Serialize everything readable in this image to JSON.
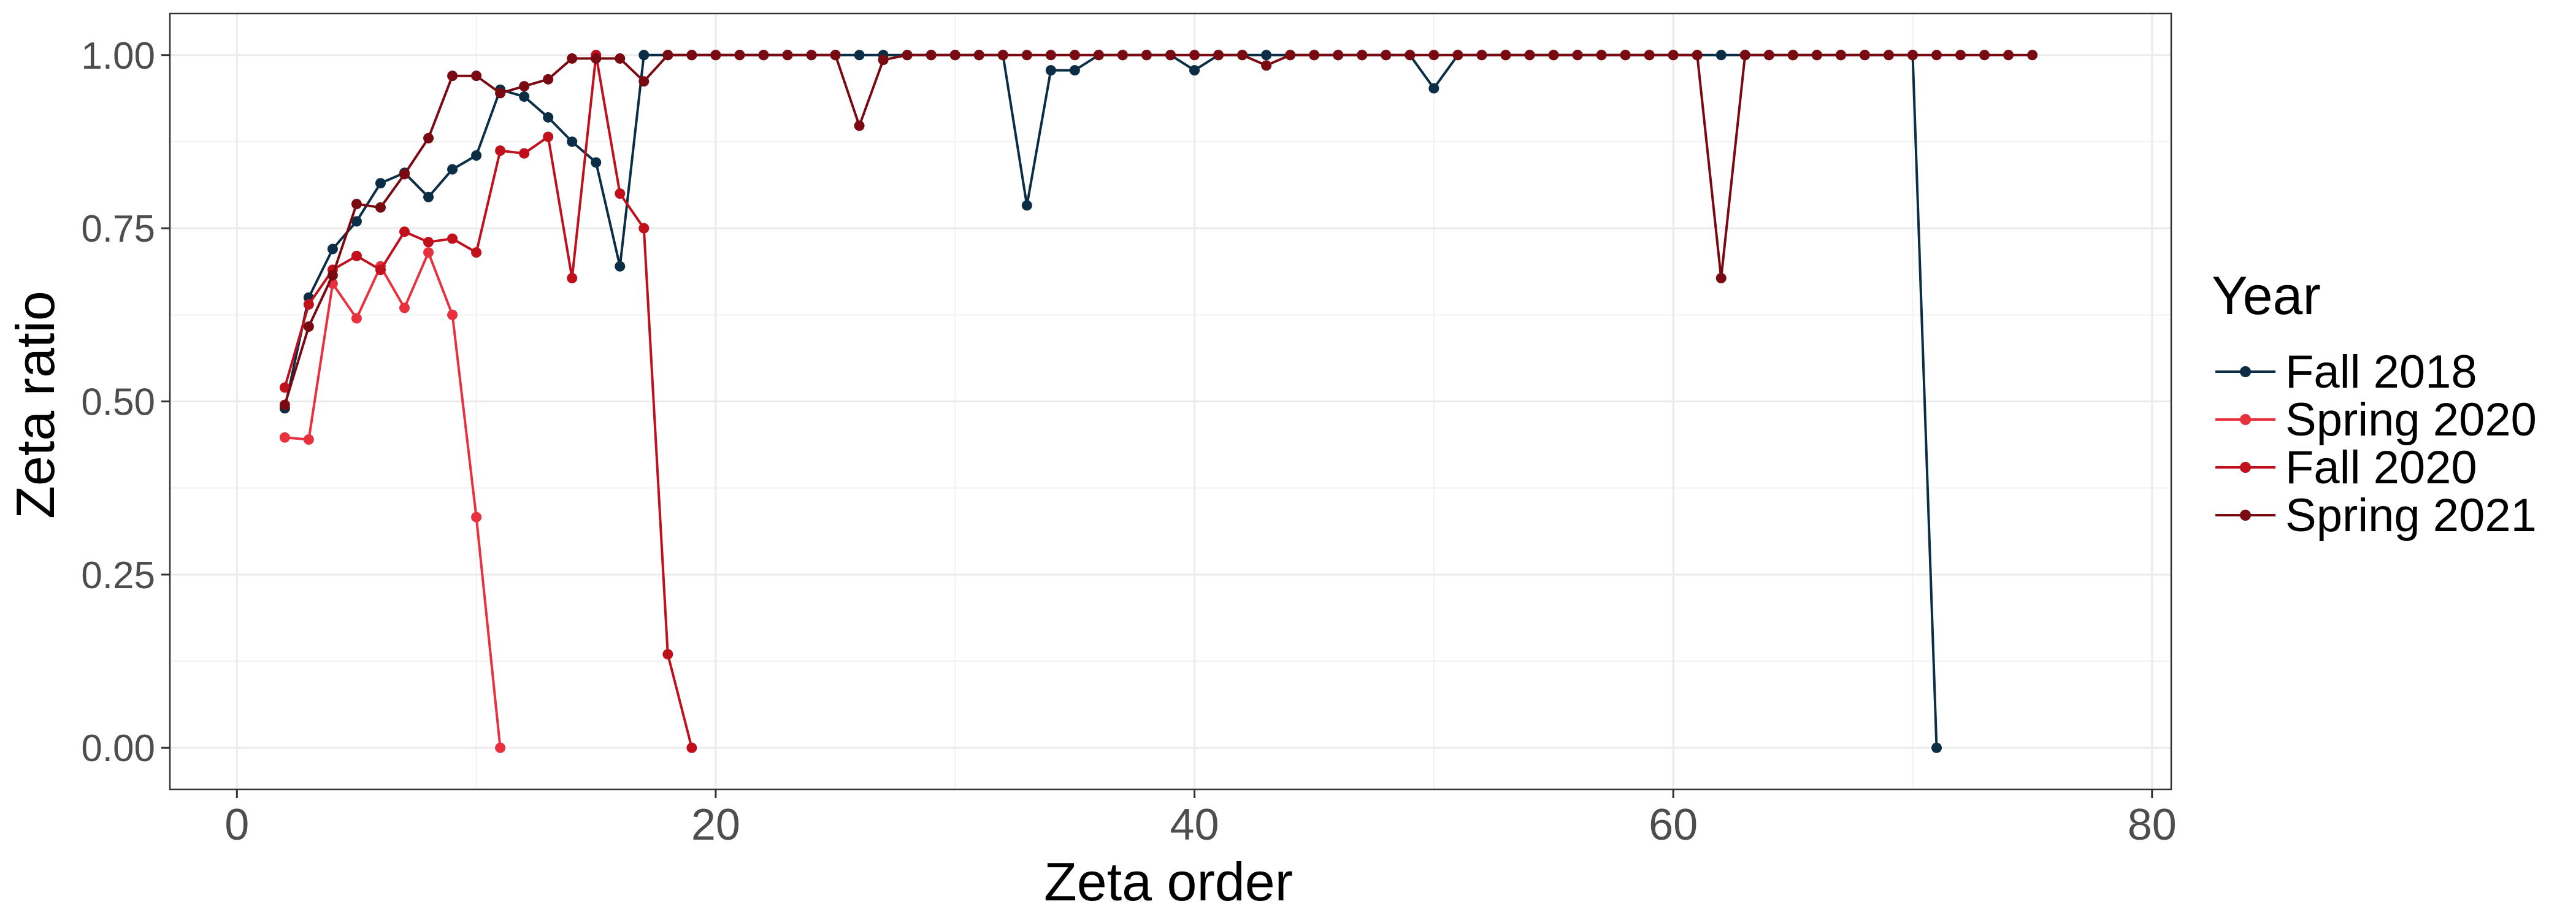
{
  "chart_data": {
    "type": "line",
    "title": "",
    "xlabel": "Zeta order",
    "ylabel": "Zeta ratio",
    "xlim": [
      -2.8,
      80.8
    ],
    "ylim": [
      -0.06,
      1.06
    ],
    "x_ticks": [
      0,
      20,
      40,
      60,
      80
    ],
    "x_tick_labels": [
      "0",
      "20",
      "40",
      "60",
      "80"
    ],
    "y_ticks": [
      0,
      0.25,
      0.5,
      0.75,
      1
    ],
    "y_tick_labels": [
      "0.00",
      "0.25",
      "0.50",
      "0.75",
      "1.00"
    ],
    "grid": true,
    "legend": {
      "title": "Year",
      "position": "right"
    },
    "series": [
      {
        "name": "Fall 2018",
        "color": "#0b2d45",
        "x": [
          2,
          3,
          4,
          5,
          6,
          7,
          8,
          9,
          10,
          11,
          12,
          13,
          14,
          15,
          16,
          17,
          18,
          19,
          20,
          21,
          22,
          23,
          24,
          25,
          26,
          27,
          28,
          29,
          30,
          31,
          32,
          33,
          34,
          35,
          36,
          37,
          38,
          39,
          40,
          41,
          42,
          43,
          44,
          45,
          46,
          47,
          48,
          49,
          50,
          51,
          52,
          53,
          54,
          55,
          56,
          57,
          58,
          59,
          60,
          61,
          62,
          63,
          64,
          65,
          66,
          67,
          68,
          69,
          70,
          71
        ],
        "y": [
          0.49,
          0.65,
          0.72,
          0.76,
          0.815,
          0.83,
          0.795,
          0.835,
          0.855,
          0.95,
          0.94,
          0.91,
          0.875,
          0.845,
          0.695,
          1,
          1,
          1,
          1,
          1,
          1,
          1,
          1,
          1,
          1,
          1,
          1,
          1,
          1,
          1,
          1,
          0.783,
          0.978,
          0.978,
          1,
          1,
          1,
          1,
          0.978,
          1,
          1,
          1,
          1,
          1,
          1,
          1,
          1,
          1,
          0.952,
          1,
          1,
          1,
          1,
          1,
          1,
          1,
          1,
          1,
          1,
          1,
          1,
          1,
          1,
          1,
          1,
          1,
          1,
          1,
          1,
          0
        ]
      },
      {
        "name": "Spring 2020",
        "color": "#e8313e",
        "x": [
          2,
          3,
          4,
          5,
          6,
          7,
          8,
          9,
          10,
          11
        ],
        "y": [
          0.448,
          0.445,
          0.67,
          0.62,
          0.695,
          0.635,
          0.715,
          0.625,
          0.333,
          0
        ]
      },
      {
        "name": "Fall 2020",
        "color": "#c0101c",
        "x": [
          2,
          3,
          4,
          5,
          6,
          7,
          8,
          9,
          10,
          11,
          12,
          13,
          14,
          15,
          16,
          17,
          18,
          19
        ],
        "y": [
          0.52,
          0.64,
          0.69,
          0.71,
          0.69,
          0.745,
          0.73,
          0.735,
          0.715,
          0.862,
          0.858,
          0.882,
          0.678,
          1,
          0.8,
          0.75,
          0.135,
          0
        ]
      },
      {
        "name": "Spring 2021",
        "color": "#7a0a12",
        "x": [
          2,
          3,
          4,
          5,
          6,
          7,
          8,
          9,
          10,
          11,
          12,
          13,
          14,
          15,
          16,
          17,
          18,
          19,
          20,
          21,
          22,
          23,
          24,
          25,
          26,
          27,
          28,
          29,
          30,
          31,
          32,
          33,
          34,
          35,
          36,
          37,
          38,
          39,
          40,
          41,
          42,
          43,
          44,
          45,
          46,
          47,
          48,
          49,
          50,
          51,
          52,
          53,
          54,
          55,
          56,
          57,
          58,
          59,
          60,
          61,
          62,
          63,
          64,
          65,
          66,
          67,
          68,
          69,
          70,
          71,
          72,
          73,
          74,
          75
        ],
        "y": [
          0.495,
          0.608,
          0.682,
          0.785,
          0.78,
          0.828,
          0.88,
          0.97,
          0.97,
          0.945,
          0.955,
          0.965,
          0.995,
          0.995,
          0.995,
          0.962,
          1,
          1,
          1,
          1,
          1,
          1,
          1,
          1,
          0.898,
          0.993,
          1,
          1,
          1,
          1,
          1,
          1,
          1,
          1,
          1,
          1,
          1,
          1,
          1,
          1,
          1,
          0.985,
          1,
          1,
          1,
          1,
          1,
          1,
          1,
          1,
          1,
          1,
          1,
          1,
          1,
          1,
          1,
          1,
          1,
          1,
          0.678,
          1,
          1,
          1,
          1,
          1,
          1,
          1,
          1,
          1,
          1,
          1,
          1,
          1
        ]
      }
    ]
  }
}
